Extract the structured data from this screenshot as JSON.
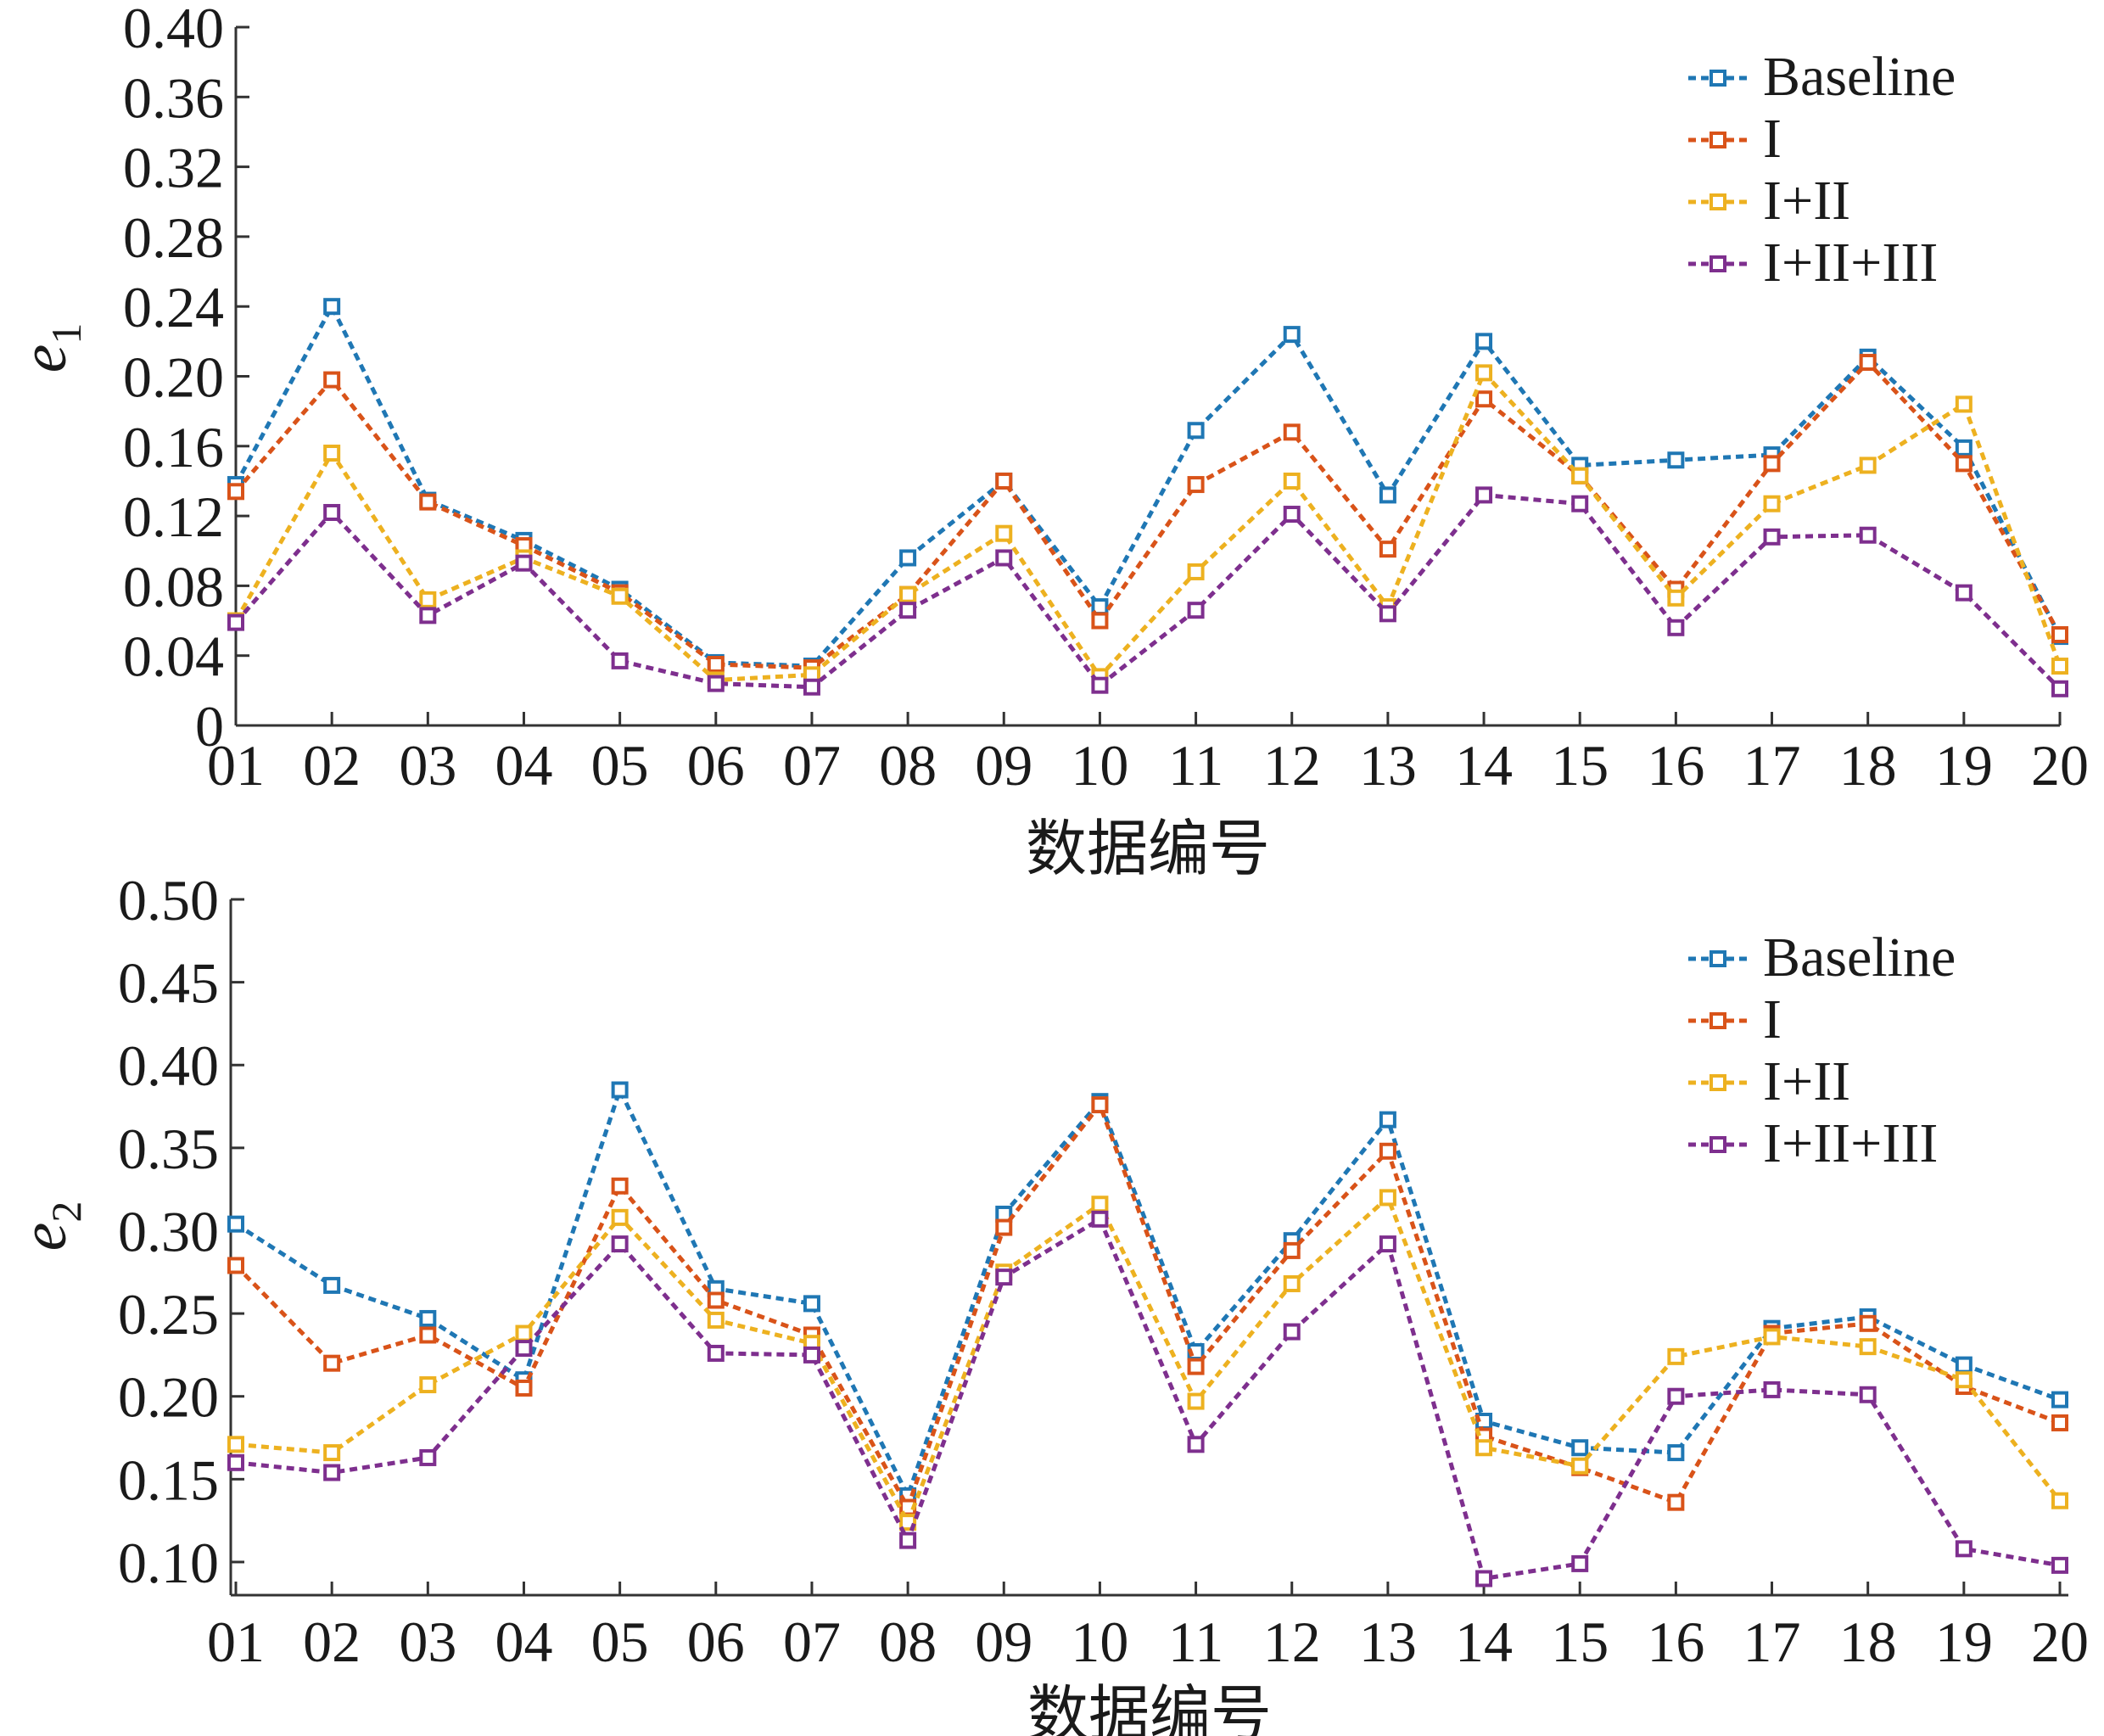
{
  "chart_data": [
    {
      "type": "line",
      "xlabel": "数据编号",
      "ylabel": "e",
      "ylabel_sub": "1",
      "categories": [
        "01",
        "02",
        "03",
        "04",
        "05",
        "06",
        "07",
        "08",
        "09",
        "10",
        "11",
        "12",
        "13",
        "14",
        "15",
        "16",
        "17",
        "18",
        "19",
        "20"
      ],
      "yticks": [
        "0",
        "0.04",
        "0.08",
        "0.12",
        "0.16",
        "0.20",
        "0.24",
        "0.28",
        "0.32",
        "0.36",
        "0.40"
      ],
      "ylim": [
        0,
        0.4
      ],
      "legend_position": "top-right",
      "grid": false,
      "series": [
        {
          "name": "Baseline",
          "color": "#1f77b4",
          "values": [
            0.138,
            0.24,
            0.129,
            0.106,
            0.078,
            0.036,
            0.034,
            0.096,
            0.14,
            0.068,
            0.169,
            0.224,
            0.132,
            0.22,
            0.149,
            0.152,
            0.155,
            0.211,
            0.159,
            0.051
          ]
        },
        {
          "name": "I",
          "color": "#d95319",
          "values": [
            0.134,
            0.198,
            0.128,
            0.103,
            0.076,
            0.035,
            0.033,
            0.075,
            0.14,
            0.06,
            0.138,
            0.168,
            0.101,
            0.187,
            0.143,
            0.078,
            0.15,
            0.208,
            0.15,
            0.052
          ]
        },
        {
          "name": "I+II",
          "color": "#edb120",
          "values": [
            0.06,
            0.156,
            0.072,
            0.096,
            0.074,
            0.026,
            0.029,
            0.075,
            0.11,
            0.028,
            0.088,
            0.14,
            0.068,
            0.202,
            0.143,
            0.073,
            0.127,
            0.149,
            0.184,
            0.034
          ]
        },
        {
          "name": "I+II+III",
          "color": "#7e2f8e",
          "values": [
            0.059,
            0.122,
            0.063,
            0.093,
            0.037,
            0.024,
            0.022,
            0.066,
            0.096,
            0.023,
            0.066,
            0.121,
            0.064,
            0.132,
            0.127,
            0.056,
            0.108,
            0.109,
            0.076,
            0.021
          ]
        }
      ]
    },
    {
      "type": "line",
      "xlabel": "数据编号",
      "ylabel": "e",
      "ylabel_sub": "2",
      "categories": [
        "01",
        "02",
        "03",
        "04",
        "05",
        "06",
        "07",
        "08",
        "09",
        "10",
        "11",
        "12",
        "13",
        "14",
        "15",
        "16",
        "17",
        "18",
        "19",
        "20"
      ],
      "yticks": [
        "0.10",
        "0.15",
        "0.20",
        "0.25",
        "0.30",
        "0.35",
        "0.40",
        "0.45",
        "0.50"
      ],
      "ylim": [
        0.08,
        0.5
      ],
      "legend_position": "top-right",
      "grid": false,
      "series": [
        {
          "name": "Baseline",
          "color": "#1f77b4",
          "values": [
            0.304,
            0.267,
            0.247,
            0.21,
            0.385,
            0.265,
            0.256,
            0.14,
            0.31,
            0.378,
            0.227,
            0.294,
            0.367,
            0.185,
            0.169,
            0.166,
            0.241,
            0.248,
            0.219,
            0.198
          ]
        },
        {
          "name": "I",
          "color": "#d95319",
          "values": [
            0.279,
            0.22,
            0.237,
            0.205,
            0.327,
            0.258,
            0.237,
            0.133,
            0.302,
            0.376,
            0.218,
            0.288,
            0.348,
            0.176,
            0.157,
            0.136,
            0.238,
            0.244,
            0.206,
            0.184
          ]
        },
        {
          "name": "I+II",
          "color": "#edb120",
          "values": [
            0.171,
            0.166,
            0.207,
            0.238,
            0.308,
            0.246,
            0.232,
            0.124,
            0.275,
            0.316,
            0.197,
            0.268,
            0.32,
            0.169,
            0.158,
            0.224,
            0.236,
            0.23,
            0.21,
            0.137
          ]
        },
        {
          "name": "I+II+III",
          "color": "#7e2f8e",
          "values": [
            0.16,
            0.154,
            0.163,
            0.229,
            0.292,
            0.226,
            0.225,
            0.113,
            0.272,
            0.307,
            0.171,
            0.239,
            0.292,
            0.09,
            0.099,
            0.2,
            0.204,
            0.201,
            0.108,
            0.098
          ]
        }
      ]
    }
  ]
}
